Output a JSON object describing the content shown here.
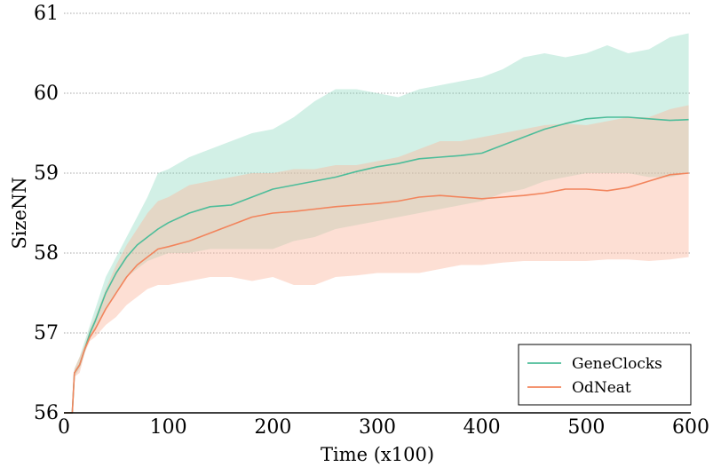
{
  "chart_data": {
    "type": "line",
    "title": "",
    "xlabel": "Time (x100)",
    "ylabel": "SizeNN",
    "xlim": [
      0,
      600
    ],
    "ylim": [
      56,
      61
    ],
    "xticks": [
      "0",
      "100",
      "200",
      "300",
      "400",
      "500",
      "600"
    ],
    "yticks": [
      "56",
      "57",
      "58",
      "59",
      "60",
      "61"
    ],
    "grid": "horizontal-dotted",
    "legend_position": "bottom-right",
    "series": [
      {
        "name": "GeneClocks",
        "color": "#4dbd9a",
        "band_color": "#7fd3b8",
        "points": [
          [
            0,
            56.0
          ],
          [
            8,
            56.0
          ],
          [
            10,
            56.5
          ],
          [
            15,
            56.6
          ],
          [
            20,
            56.8
          ],
          [
            25,
            57.0
          ],
          [
            30,
            57.15
          ],
          [
            40,
            57.5
          ],
          [
            50,
            57.75
          ],
          [
            60,
            57.95
          ],
          [
            70,
            58.1
          ],
          [
            80,
            58.2
          ],
          [
            90,
            58.3
          ],
          [
            100,
            58.38
          ],
          [
            120,
            58.5
          ],
          [
            140,
            58.58
          ],
          [
            160,
            58.6
          ],
          [
            180,
            58.7
          ],
          [
            200,
            58.8
          ],
          [
            220,
            58.85
          ],
          [
            240,
            58.9
          ],
          [
            260,
            58.95
          ],
          [
            280,
            59.02
          ],
          [
            300,
            59.08
          ],
          [
            320,
            59.12
          ],
          [
            340,
            59.18
          ],
          [
            360,
            59.2
          ],
          [
            380,
            59.22
          ],
          [
            400,
            59.25
          ],
          [
            420,
            59.35
          ],
          [
            440,
            59.45
          ],
          [
            460,
            59.55
          ],
          [
            480,
            59.62
          ],
          [
            500,
            59.68
          ],
          [
            520,
            59.7
          ],
          [
            540,
            59.7
          ],
          [
            560,
            59.68
          ],
          [
            580,
            59.66
          ],
          [
            598,
            59.67
          ]
        ],
        "upper": [
          [
            0,
            56.0
          ],
          [
            8,
            56.0
          ],
          [
            10,
            56.55
          ],
          [
            15,
            56.7
          ],
          [
            20,
            56.9
          ],
          [
            25,
            57.1
          ],
          [
            30,
            57.3
          ],
          [
            40,
            57.7
          ],
          [
            50,
            57.95
          ],
          [
            60,
            58.2
          ],
          [
            70,
            58.45
          ],
          [
            80,
            58.7
          ],
          [
            90,
            59.0
          ],
          [
            100,
            59.05
          ],
          [
            120,
            59.2
          ],
          [
            140,
            59.3
          ],
          [
            160,
            59.4
          ],
          [
            180,
            59.5
          ],
          [
            200,
            59.55
          ],
          [
            220,
            59.7
          ],
          [
            240,
            59.9
          ],
          [
            260,
            60.05
          ],
          [
            280,
            60.05
          ],
          [
            300,
            60.0
          ],
          [
            320,
            59.95
          ],
          [
            340,
            60.05
          ],
          [
            360,
            60.1
          ],
          [
            380,
            60.15
          ],
          [
            400,
            60.2
          ],
          [
            420,
            60.3
          ],
          [
            440,
            60.45
          ],
          [
            460,
            60.5
          ],
          [
            480,
            60.45
          ],
          [
            500,
            60.5
          ],
          [
            520,
            60.6
          ],
          [
            540,
            60.5
          ],
          [
            560,
            60.55
          ],
          [
            580,
            60.7
          ],
          [
            598,
            60.75
          ]
        ],
        "lower": [
          [
            0,
            56.0
          ],
          [
            8,
            56.0
          ],
          [
            10,
            56.45
          ],
          [
            15,
            56.55
          ],
          [
            20,
            56.75
          ],
          [
            25,
            56.95
          ],
          [
            30,
            57.05
          ],
          [
            40,
            57.3
          ],
          [
            50,
            57.5
          ],
          [
            60,
            57.7
          ],
          [
            70,
            57.8
          ],
          [
            80,
            57.9
          ],
          [
            90,
            57.95
          ],
          [
            100,
            58.0
          ],
          [
            120,
            58.0
          ],
          [
            140,
            58.05
          ],
          [
            160,
            58.05
          ],
          [
            180,
            58.05
          ],
          [
            200,
            58.05
          ],
          [
            220,
            58.15
          ],
          [
            240,
            58.2
          ],
          [
            260,
            58.3
          ],
          [
            280,
            58.35
          ],
          [
            300,
            58.4
          ],
          [
            320,
            58.45
          ],
          [
            340,
            58.5
          ],
          [
            360,
            58.55
          ],
          [
            380,
            58.6
          ],
          [
            400,
            58.65
          ],
          [
            420,
            58.75
          ],
          [
            440,
            58.8
          ],
          [
            460,
            58.9
          ],
          [
            480,
            58.95
          ],
          [
            500,
            59.0
          ],
          [
            520,
            59.0
          ],
          [
            540,
            59.0
          ],
          [
            560,
            58.95
          ],
          [
            580,
            58.95
          ],
          [
            598,
            59.0
          ]
        ]
      },
      {
        "name": "OdNeat",
        "color": "#f2845c",
        "band_color": "#fbb7a0",
        "points": [
          [
            0,
            56.0
          ],
          [
            8,
            56.0
          ],
          [
            10,
            56.5
          ],
          [
            15,
            56.6
          ],
          [
            20,
            56.8
          ],
          [
            25,
            56.95
          ],
          [
            30,
            57.05
          ],
          [
            40,
            57.3
          ],
          [
            50,
            57.5
          ],
          [
            60,
            57.7
          ],
          [
            70,
            57.85
          ],
          [
            80,
            57.95
          ],
          [
            90,
            58.05
          ],
          [
            100,
            58.08
          ],
          [
            120,
            58.15
          ],
          [
            140,
            58.25
          ],
          [
            160,
            58.35
          ],
          [
            180,
            58.45
          ],
          [
            200,
            58.5
          ],
          [
            220,
            58.52
          ],
          [
            240,
            58.55
          ],
          [
            260,
            58.58
          ],
          [
            280,
            58.6
          ],
          [
            300,
            58.62
          ],
          [
            320,
            58.65
          ],
          [
            340,
            58.7
          ],
          [
            360,
            58.72
          ],
          [
            380,
            58.7
          ],
          [
            400,
            58.68
          ],
          [
            420,
            58.7
          ],
          [
            440,
            58.72
          ],
          [
            460,
            58.75
          ],
          [
            480,
            58.8
          ],
          [
            500,
            58.8
          ],
          [
            520,
            58.78
          ],
          [
            540,
            58.82
          ],
          [
            560,
            58.9
          ],
          [
            580,
            58.98
          ],
          [
            598,
            59.0
          ]
        ],
        "upper": [
          [
            0,
            56.0
          ],
          [
            8,
            56.0
          ],
          [
            10,
            56.55
          ],
          [
            15,
            56.7
          ],
          [
            20,
            56.85
          ],
          [
            25,
            57.05
          ],
          [
            30,
            57.2
          ],
          [
            40,
            57.55
          ],
          [
            50,
            57.85
          ],
          [
            60,
            58.1
          ],
          [
            70,
            58.3
          ],
          [
            80,
            58.5
          ],
          [
            90,
            58.65
          ],
          [
            100,
            58.7
          ],
          [
            120,
            58.85
          ],
          [
            140,
            58.9
          ],
          [
            160,
            58.95
          ],
          [
            180,
            59.0
          ],
          [
            200,
            59.0
          ],
          [
            220,
            59.05
          ],
          [
            240,
            59.05
          ],
          [
            260,
            59.1
          ],
          [
            280,
            59.1
          ],
          [
            300,
            59.15
          ],
          [
            320,
            59.2
          ],
          [
            340,
            59.3
          ],
          [
            360,
            59.4
          ],
          [
            380,
            59.4
          ],
          [
            400,
            59.45
          ],
          [
            420,
            59.5
          ],
          [
            440,
            59.55
          ],
          [
            460,
            59.6
          ],
          [
            480,
            59.62
          ],
          [
            500,
            59.6
          ],
          [
            520,
            59.65
          ],
          [
            540,
            59.7
          ],
          [
            560,
            59.7
          ],
          [
            580,
            59.8
          ],
          [
            598,
            59.85
          ]
        ],
        "lower": [
          [
            0,
            56.0
          ],
          [
            8,
            56.0
          ],
          [
            10,
            56.45
          ],
          [
            15,
            56.5
          ],
          [
            20,
            56.75
          ],
          [
            25,
            56.9
          ],
          [
            30,
            56.95
          ],
          [
            40,
            57.1
          ],
          [
            50,
            57.2
          ],
          [
            60,
            57.35
          ],
          [
            70,
            57.45
          ],
          [
            80,
            57.55
          ],
          [
            90,
            57.6
          ],
          [
            100,
            57.6
          ],
          [
            120,
            57.65
          ],
          [
            140,
            57.7
          ],
          [
            160,
            57.7
          ],
          [
            180,
            57.65
          ],
          [
            200,
            57.7
          ],
          [
            220,
            57.6
          ],
          [
            240,
            57.6
          ],
          [
            260,
            57.7
          ],
          [
            280,
            57.72
          ],
          [
            300,
            57.75
          ],
          [
            320,
            57.75
          ],
          [
            340,
            57.75
          ],
          [
            360,
            57.8
          ],
          [
            380,
            57.85
          ],
          [
            400,
            57.85
          ],
          [
            420,
            57.88
          ],
          [
            440,
            57.9
          ],
          [
            460,
            57.9
          ],
          [
            480,
            57.9
          ],
          [
            500,
            57.9
          ],
          [
            520,
            57.92
          ],
          [
            540,
            57.92
          ],
          [
            560,
            57.9
          ],
          [
            580,
            57.92
          ],
          [
            598,
            57.95
          ]
        ]
      }
    ]
  }
}
